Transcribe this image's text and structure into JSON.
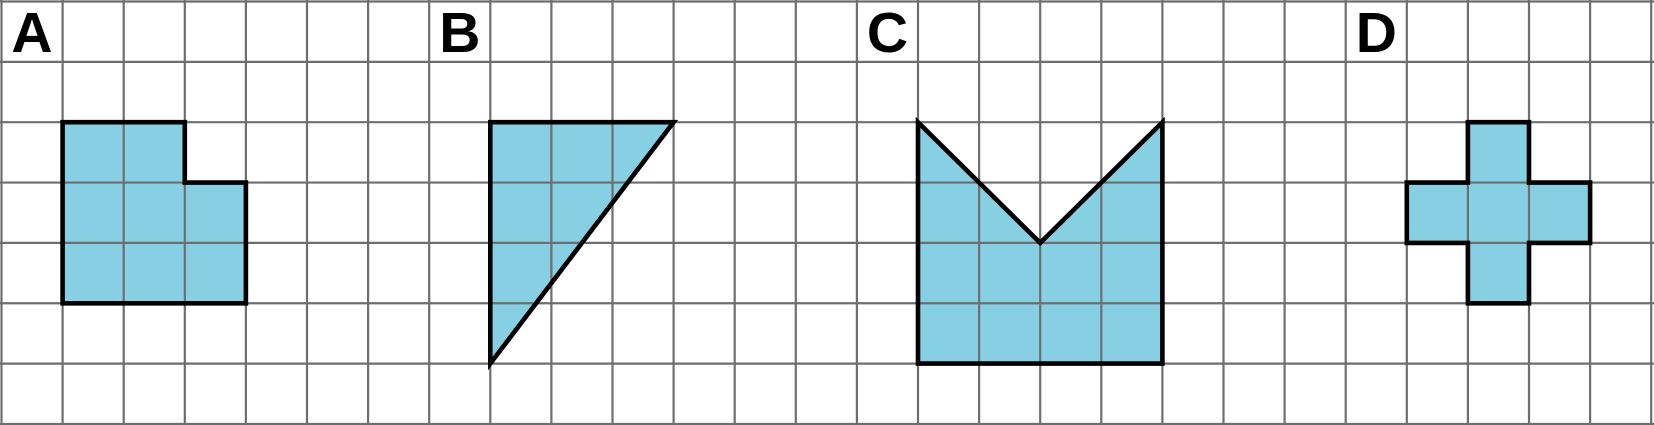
{
  "figure": {
    "background_color": "#FFFFFF",
    "grid": {
      "columns": 27,
      "rows": 7,
      "line_color": "#6E6E6E"
    },
    "style": {
      "shape_fill_color": "#87CFE2",
      "shape_outline_color": "#000000",
      "label_color": "#000000"
    },
    "shapes": [
      {
        "label": "A",
        "label_cell": {
          "col": 0,
          "row": 0
        },
        "vertices_grid_units": [
          [
            1,
            2
          ],
          [
            3,
            2
          ],
          [
            3,
            3
          ],
          [
            4,
            3
          ],
          [
            4,
            5
          ],
          [
            1,
            5
          ]
        ]
      },
      {
        "label": "B",
        "label_cell": {
          "col": 7,
          "row": 0
        },
        "vertices_grid_units": [
          [
            8,
            2
          ],
          [
            11,
            2
          ],
          [
            8,
            6
          ]
        ]
      },
      {
        "label": "C",
        "label_cell": {
          "col": 14,
          "row": 0
        },
        "vertices_grid_units": [
          [
            15,
            2
          ],
          [
            17,
            4
          ],
          [
            19,
            2
          ],
          [
            19,
            6
          ],
          [
            15,
            6
          ]
        ]
      },
      {
        "label": "D",
        "label_cell": {
          "col": 22,
          "row": 0
        },
        "vertices_grid_units": [
          [
            24,
            2
          ],
          [
            25,
            2
          ],
          [
            25,
            3
          ],
          [
            26,
            3
          ],
          [
            26,
            4
          ],
          [
            25,
            4
          ],
          [
            25,
            5
          ],
          [
            24,
            5
          ],
          [
            24,
            4
          ],
          [
            23,
            4
          ],
          [
            23,
            3
          ],
          [
            24,
            3
          ]
        ]
      }
    ]
  }
}
